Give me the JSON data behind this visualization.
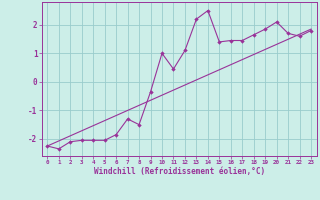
{
  "xlabel": "Windchill (Refroidissement éolien,°C)",
  "ylabel": "",
  "bg_color": "#cceee8",
  "line_color": "#993399",
  "scatter_color": "#993399",
  "xlim": [
    -0.5,
    23.5
  ],
  "ylim": [
    -2.6,
    2.8
  ],
  "xticks": [
    0,
    1,
    2,
    3,
    4,
    5,
    6,
    7,
    8,
    9,
    10,
    11,
    12,
    13,
    14,
    15,
    16,
    17,
    18,
    19,
    20,
    21,
    22,
    23
  ],
  "yticks": [
    -2,
    -1,
    0,
    1,
    2
  ],
  "data_x": [
    0,
    1,
    2,
    3,
    4,
    5,
    6,
    7,
    8,
    9,
    10,
    11,
    12,
    13,
    14,
    15,
    16,
    17,
    18,
    19,
    20,
    21,
    22,
    23
  ],
  "data_y": [
    -2.25,
    -2.35,
    -2.1,
    -2.05,
    -2.05,
    -2.05,
    -1.85,
    -1.3,
    -1.5,
    -0.35,
    1.0,
    0.45,
    1.1,
    2.2,
    2.5,
    1.4,
    1.45,
    1.45,
    1.65,
    1.85,
    2.1,
    1.7,
    1.6,
    1.8
  ],
  "trend_x": [
    0,
    23
  ],
  "trend_y": [
    -2.25,
    1.85
  ],
  "grid_color": "#99cccc",
  "font_color": "#993399",
  "spine_color": "#993399"
}
